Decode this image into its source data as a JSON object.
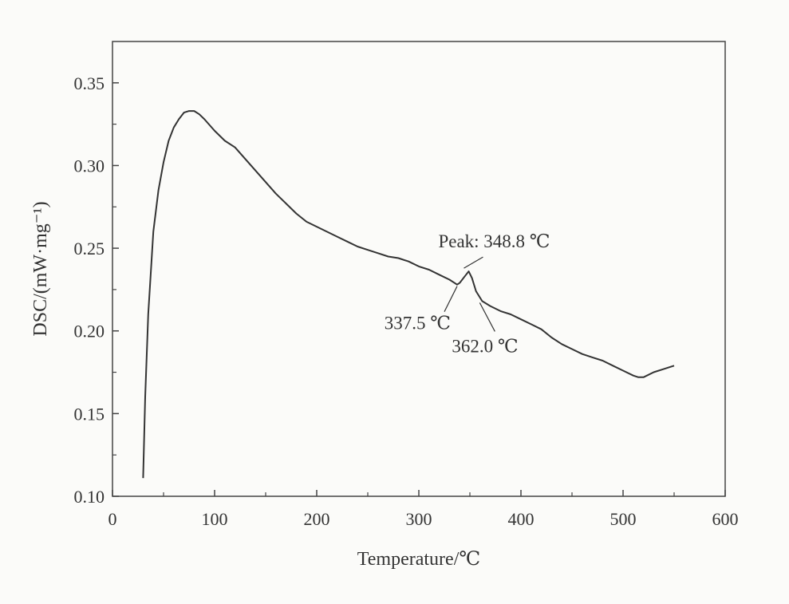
{
  "chart_data": {
    "type": "line",
    "xlabel": "Temperature/℃",
    "ylabel": "DSC/(mW·mg⁻¹)",
    "xlim": [
      0,
      600
    ],
    "ylim": [
      0.1,
      0.375
    ],
    "xticks": [
      0,
      100,
      200,
      300,
      400,
      500,
      600
    ],
    "yticks": [
      0.1,
      0.15,
      0.2,
      0.25,
      0.3,
      0.35
    ],
    "xtick_labels": [
      "0",
      "100",
      "200",
      "300",
      "400",
      "500",
      "600"
    ],
    "ytick_labels": [
      "0.10",
      "0.15",
      "0.20",
      "0.25",
      "0.30",
      "0.35"
    ],
    "grid": false,
    "series": [
      {
        "x": [
          30,
          32,
          35,
          40,
          45,
          50,
          55,
          60,
          65,
          70,
          75,
          80,
          85,
          90,
          100,
          110,
          120,
          130,
          140,
          150,
          160,
          170,
          180,
          190,
          200,
          210,
          220,
          230,
          240,
          250,
          260,
          270,
          280,
          290,
          300,
          310,
          320,
          330,
          337.5,
          340,
          345,
          348.8,
          352,
          356,
          362,
          370,
          380,
          390,
          400,
          410,
          420,
          430,
          440,
          450,
          460,
          470,
          480,
          490,
          500,
          510,
          515,
          520,
          530,
          540,
          550
        ],
        "y": [
          0.111,
          0.16,
          0.21,
          0.26,
          0.285,
          0.302,
          0.315,
          0.323,
          0.328,
          0.332,
          0.333,
          0.333,
          0.331,
          0.328,
          0.321,
          0.315,
          0.311,
          0.304,
          0.297,
          0.29,
          0.283,
          0.277,
          0.271,
          0.266,
          0.263,
          0.26,
          0.257,
          0.254,
          0.251,
          0.249,
          0.247,
          0.245,
          0.244,
          0.242,
          0.239,
          0.237,
          0.234,
          0.231,
          0.228,
          0.229,
          0.233,
          0.236,
          0.232,
          0.224,
          0.218,
          0.215,
          0.212,
          0.21,
          0.207,
          0.204,
          0.201,
          0.196,
          0.192,
          0.189,
          0.186,
          0.184,
          0.182,
          0.179,
          0.176,
          0.173,
          0.172,
          0.172,
          0.175,
          0.177,
          0.179
        ]
      }
    ],
    "annotations": [
      {
        "text": "Peak: 348.8 ℃",
        "x": 348.8,
        "y": 0.236
      },
      {
        "text": "337.5 ℃",
        "x": 337.5,
        "y": 0.228
      },
      {
        "text": "362.0 ℃",
        "x": 362.0,
        "y": 0.218
      }
    ]
  }
}
